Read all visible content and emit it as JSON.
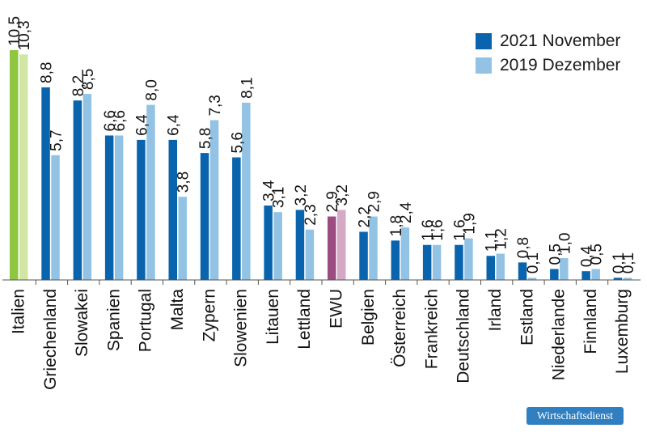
{
  "legend": {
    "items": [
      {
        "label": "2021 November",
        "color": "#0a64ad"
      },
      {
        "label": "2019 Dezember",
        "color": "#93c3e4"
      }
    ]
  },
  "source_badge": "Wirtschaftsdienst",
  "colors": {
    "series1": "#0a64ad",
    "series2": "#93c3e4",
    "italien_series1": "#8ec63f",
    "italien_series2": "#d1e6a5",
    "ewu_series1": "#9b4d82",
    "ewu_series2": "#d5a9c5",
    "axis": "#555555"
  },
  "chart_data": {
    "type": "bar",
    "title": "",
    "xlabel": "",
    "ylabel": "",
    "ylim": [
      0,
      11
    ],
    "grid": false,
    "legend_position": "top-right",
    "categories": [
      "Italien",
      "Griechenland",
      "Slowakei",
      "Spanien",
      "Portugal",
      "Malta",
      "Zypern",
      "Slowenien",
      "Litauen",
      "Lettland",
      "EWU",
      "Belgien",
      "Österreich",
      "Frankreich",
      "Deutschland",
      "Irland",
      "Estland",
      "Niederlande",
      "Finnland",
      "Luxemburg"
    ],
    "series": [
      {
        "name": "2021 November",
        "values": [
          10.5,
          8.8,
          8.2,
          6.6,
          6.4,
          6.4,
          5.8,
          5.6,
          3.4,
          3.2,
          2.9,
          2.2,
          1.8,
          1.6,
          1.6,
          1.1,
          0.8,
          0.5,
          0.4,
          0.1
        ],
        "labels": [
          "10,5",
          "8,8",
          "8,2",
          "6,6",
          "6,4",
          "6,4",
          "5,8",
          "5,6",
          "3,4",
          "3,2",
          "2,9",
          "2,2",
          "1,8",
          "1,6",
          "1,6",
          "1,1",
          "0,8",
          "0,5",
          "0,4",
          "0,1"
        ]
      },
      {
        "name": "2019 Dezember",
        "values": [
          10.3,
          5.7,
          8.5,
          6.6,
          8.0,
          3.8,
          7.3,
          8.1,
          3.1,
          2.3,
          3.2,
          2.9,
          2.4,
          1.6,
          1.9,
          1.2,
          0.1,
          1.0,
          0.5,
          0.1
        ],
        "labels": [
          "10,3",
          "5,7",
          "8,5",
          "6,6",
          "8,0",
          "3,8",
          "7,3",
          "8,1",
          "3,1",
          "2,3",
          "3,2",
          "2,9",
          "2,4",
          "1,6",
          "1,9",
          "1,2",
          "0,1",
          "1,0",
          "0,5",
          "0,1"
        ]
      }
    ]
  }
}
